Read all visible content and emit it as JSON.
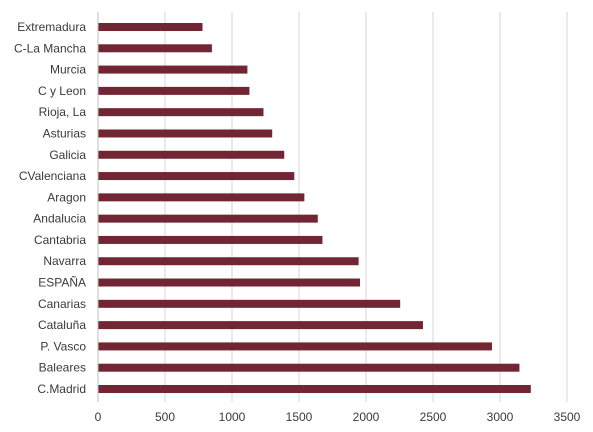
{
  "chart_data": {
    "type": "bar",
    "orientation": "horizontal",
    "categories": [
      "Extremadura",
      "C-La Mancha",
      "Murcia",
      "C y Leon",
      "Rioja, La",
      "Asturias",
      "Galicia",
      "CValenciana",
      "Aragon",
      "Andalucia",
      "Cantabria",
      "Navarra",
      "ESPAÑA",
      "Canarias",
      "Cataluña",
      "P. Vasco",
      "Baleares",
      "C.Madrid"
    ],
    "values": [
      780,
      850,
      1115,
      1130,
      1235,
      1300,
      1390,
      1465,
      1540,
      1640,
      1675,
      1945,
      1955,
      2255,
      2425,
      2940,
      3145,
      3230
    ],
    "xlim": [
      0,
      3500
    ],
    "xticks": [
      0,
      500,
      1000,
      1500,
      2000,
      2500,
      3000,
      3500
    ],
    "grid": true,
    "colors": {
      "bar": "#722532"
    },
    "title": "",
    "xlabel": "",
    "ylabel": ""
  }
}
